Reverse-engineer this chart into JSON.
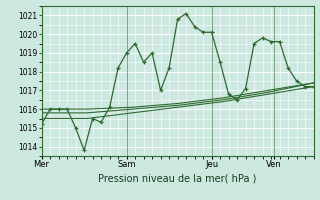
{
  "xlabel": "Pression niveau de la mer( hPa )",
  "bg_color": "#cce8e0",
  "grid_color": "#ffffff",
  "line_color": "#2d6a2d",
  "ylim": [
    1013.5,
    1021.5
  ],
  "yticks": [
    1014,
    1015,
    1016,
    1017,
    1018,
    1019,
    1020,
    1021
  ],
  "day_labels": [
    "Mer",
    "Sam",
    "Jeu",
    "Ven"
  ],
  "day_positions": [
    0,
    30,
    60,
    82
  ],
  "xlim": [
    0,
    96
  ],
  "series1_x": [
    0,
    3,
    6,
    9,
    12,
    15,
    18,
    21,
    24,
    27,
    30,
    33,
    36,
    39,
    42,
    45,
    48,
    51,
    54,
    57,
    60,
    63,
    66,
    69,
    72,
    75,
    78,
    81,
    84,
    87,
    90,
    93,
    96
  ],
  "series1_y": [
    1015.2,
    1016.0,
    1016.0,
    1016.0,
    1015.0,
    1013.8,
    1015.5,
    1015.3,
    1016.1,
    1018.2,
    1019.0,
    1019.5,
    1018.5,
    1019.0,
    1017.0,
    1018.2,
    1020.8,
    1021.1,
    1020.4,
    1020.1,
    1020.1,
    1018.5,
    1016.8,
    1016.5,
    1017.1,
    1019.5,
    1019.8,
    1019.6,
    1019.6,
    1018.2,
    1017.5,
    1017.2,
    1017.2
  ],
  "series2_x": [
    0,
    16,
    32,
    48,
    64,
    80,
    96
  ],
  "series2_y": [
    1015.5,
    1015.5,
    1015.8,
    1016.1,
    1016.4,
    1016.8,
    1017.2
  ],
  "series3_x": [
    0,
    16,
    32,
    48,
    64,
    80,
    96
  ],
  "series3_y": [
    1015.8,
    1015.8,
    1016.0,
    1016.2,
    1016.5,
    1016.9,
    1017.4
  ],
  "series4_x": [
    0,
    16,
    32,
    48,
    64,
    80,
    96
  ],
  "series4_y": [
    1016.0,
    1016.0,
    1016.1,
    1016.3,
    1016.6,
    1017.0,
    1017.4
  ]
}
